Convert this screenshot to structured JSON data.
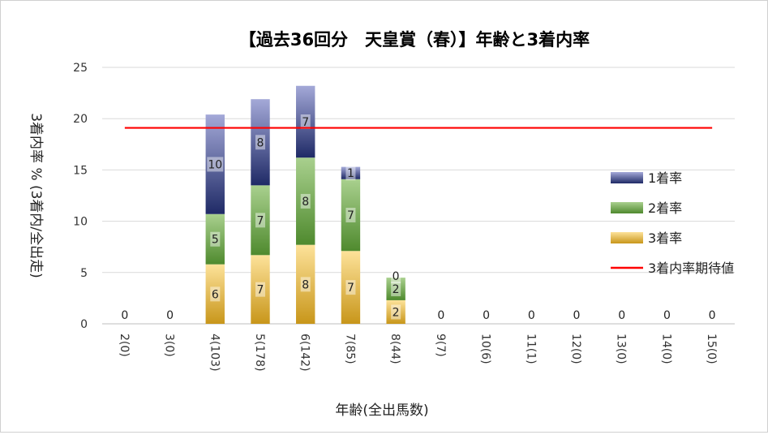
{
  "chart_data": {
    "type": "bar",
    "stacked": true,
    "title": "【過去36回分　天皇賞（春）】年齢と3着内率",
    "xlabel": "年齢(全出馬数)",
    "ylabel": "3着内率 % (3着内/全出走)",
    "ylim": [
      0,
      25
    ],
    "yticks": [
      "0",
      "5",
      "10",
      "15",
      "20",
      "25"
    ],
    "grid": true,
    "legend_position": "right",
    "categories": [
      "2(0)",
      "3(0)",
      "4(103)",
      "5(178)",
      "6(142)",
      "7(85)",
      "8(44)",
      "9(7)",
      "10(6)",
      "11(1)",
      "12(0)",
      "13(0)",
      "14(0)",
      "15(0)"
    ],
    "series": [
      {
        "name": "3着率",
        "color_top": "#fde29a",
        "color_bottom": "#c8961a",
        "values": [
          0,
          0,
          5.8,
          6.7,
          7.7,
          7.1,
          2.3,
          0,
          0,
          0,
          0,
          0,
          0,
          0
        ],
        "labels": [
          "",
          "",
          "6",
          "7",
          "8",
          "7",
          "2",
          "",
          "",
          "",
          "",
          "",
          "",
          ""
        ]
      },
      {
        "name": "2着率",
        "color_top": "#a9d08e",
        "color_bottom": "#4f8a2e",
        "values": [
          0,
          0,
          4.9,
          6.8,
          8.5,
          7.0,
          2.2,
          0,
          0,
          0,
          0,
          0,
          0,
          0
        ],
        "labels": [
          "",
          "",
          "5",
          "7",
          "8",
          "7",
          "2",
          "",
          "",
          "",
          "",
          "",
          "",
          ""
        ]
      },
      {
        "name": "1着率",
        "color_top": "#a4a9d8",
        "color_bottom": "#1f2a66",
        "values": [
          0,
          0,
          9.7,
          8.4,
          7.0,
          1.2,
          0,
          0,
          0,
          0,
          0,
          0,
          0,
          0
        ],
        "labels": [
          "",
          "",
          "10",
          "8",
          "7",
          "1",
          "0",
          "",
          "",
          "",
          "",
          "",
          "",
          ""
        ]
      }
    ],
    "zero_labels": [
      "0",
      "0",
      "",
      "",
      "",
      "",
      "",
      "0",
      "0",
      "0",
      "0",
      "0",
      "0",
      "0"
    ],
    "reference_line": {
      "name": "3着内率期待値",
      "value": 19.1,
      "color": "#ff0000"
    }
  }
}
